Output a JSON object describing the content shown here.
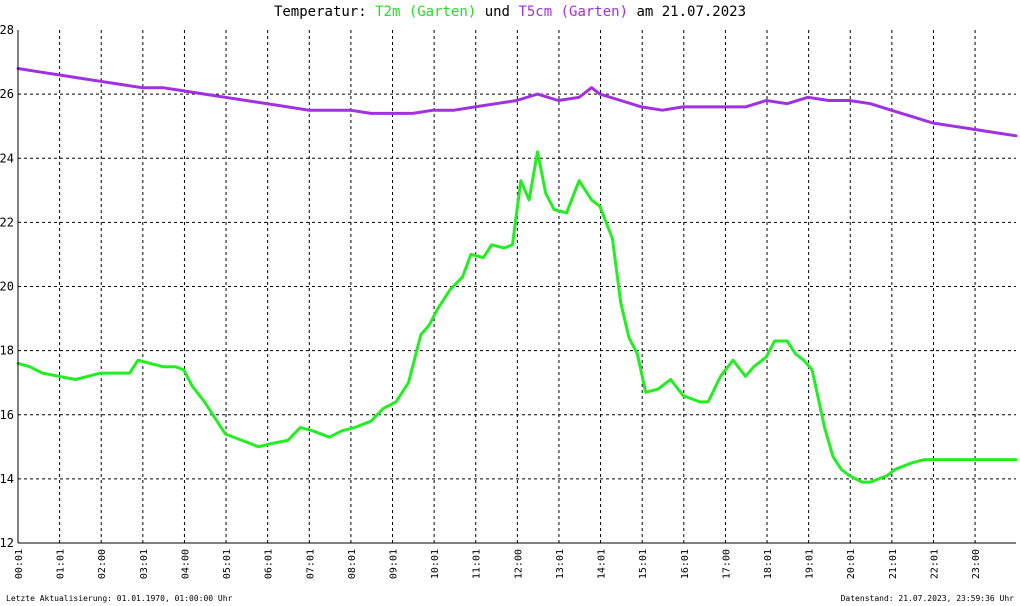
{
  "header": {
    "prefix": "Temperatur:",
    "series1": "T2m (Garten)",
    "mid": "und",
    "series2": "T5cm (Garten)",
    "suffix": "am 21.07.2023"
  },
  "footer": {
    "left": "Letzte Aktualisierung: 01.01.1970, 01:00:00 Uhr",
    "right": "Datenstand: 21.07.2023, 23:59:36 Uhr"
  },
  "colors": {
    "t2m": "#22ee22",
    "t5cm": "#a030e0",
    "grid": "#000000",
    "axis": "#000000"
  },
  "chart_data": {
    "type": "line",
    "title": "Temperatur: T2m (Garten) und T5cm (Garten) am 21.07.2023",
    "xlabel": "",
    "ylabel": "",
    "xlim": [
      0.0167,
      24
    ],
    "ylim": [
      12,
      28
    ],
    "grid": true,
    "x_ticks": [
      "00:01",
      "01:01",
      "02:00",
      "03:01",
      "04:00",
      "05:01",
      "06:01",
      "07:01",
      "08:01",
      "09:01",
      "10:01",
      "11:01",
      "12:00",
      "13:01",
      "14:01",
      "15:01",
      "16:01",
      "17:00",
      "18:01",
      "19:01",
      "20:01",
      "21:01",
      "22:01",
      "23:00"
    ],
    "y_ticks": [
      "12",
      "14",
      "16",
      "18",
      "20",
      "22",
      "24",
      "26",
      "28"
    ],
    "series": [
      {
        "name": "T2m (Garten)",
        "color": "#22ee22",
        "x": [
          0.0167,
          0.3,
          0.6,
          1.0,
          1.4,
          1.7,
          2.0,
          2.3,
          2.7,
          2.9,
          3.2,
          3.5,
          3.8,
          4.0,
          4.2,
          4.5,
          4.8,
          5.0,
          5.4,
          5.8,
          6.1,
          6.5,
          6.8,
          7.1,
          7.5,
          7.8,
          8.1,
          8.5,
          8.8,
          9.1,
          9.4,
          9.7,
          9.9,
          10.1,
          10.4,
          10.7,
          10.9,
          11.2,
          11.4,
          11.7,
          11.9,
          12.1,
          12.3,
          12.5,
          12.7,
          12.9,
          13.2,
          13.5,
          13.8,
          14.0,
          14.3,
          14.5,
          14.7,
          14.9,
          15.1,
          15.4,
          15.7,
          16.0,
          16.4,
          16.6,
          16.9,
          17.2,
          17.5,
          17.7,
          18.0,
          18.2,
          18.5,
          18.7,
          18.9,
          19.1,
          19.4,
          19.6,
          19.8,
          20.0,
          20.3,
          20.5,
          20.7,
          20.9,
          21.1,
          21.5,
          21.8,
          22.2,
          22.6,
          22.9,
          23.3,
          23.6,
          24.0
        ],
        "y": [
          17.6,
          17.5,
          17.3,
          17.2,
          17.1,
          17.2,
          17.3,
          17.3,
          17.3,
          17.7,
          17.6,
          17.5,
          17.5,
          17.4,
          16.9,
          16.4,
          15.8,
          15.4,
          15.2,
          15.0,
          15.1,
          15.2,
          15.6,
          15.5,
          15.3,
          15.5,
          15.6,
          15.8,
          16.2,
          16.4,
          17.0,
          18.5,
          18.8,
          19.3,
          19.9,
          20.3,
          21.0,
          20.9,
          21.3,
          21.2,
          21.3,
          23.3,
          22.7,
          24.2,
          22.9,
          22.4,
          22.3,
          23.3,
          22.7,
          22.5,
          21.5,
          19.5,
          18.4,
          17.9,
          16.7,
          16.8,
          17.1,
          16.6,
          16.4,
          16.4,
          17.2,
          17.7,
          17.2,
          17.5,
          17.8,
          18.3,
          18.3,
          17.9,
          17.7,
          17.4,
          15.6,
          14.7,
          14.3,
          14.1,
          13.9,
          13.9,
          14.0,
          14.1,
          14.3,
          14.5,
          14.6,
          14.6,
          14.6,
          14.6,
          14.6,
          14.6,
          14.6
        ]
      },
      {
        "name": "T5cm (Garten)",
        "color": "#a030e0",
        "x": [
          0.0167,
          0.5,
          1.0,
          1.5,
          2.0,
          2.5,
          3.0,
          3.5,
          4.0,
          4.5,
          5.0,
          5.5,
          6.0,
          6.5,
          7.0,
          7.5,
          8.0,
          8.5,
          9.0,
          9.5,
          10.0,
          10.5,
          11.0,
          11.5,
          12.0,
          12.5,
          13.0,
          13.5,
          13.8,
          14.0,
          14.5,
          15.0,
          15.5,
          16.0,
          16.5,
          17.0,
          17.5,
          18.0,
          18.5,
          19.0,
          19.5,
          20.0,
          20.5,
          21.0,
          21.5,
          22.0,
          22.5,
          23.0,
          23.5,
          24.0
        ],
        "y": [
          26.8,
          26.7,
          26.6,
          26.5,
          26.4,
          26.3,
          26.2,
          26.2,
          26.1,
          26.0,
          25.9,
          25.8,
          25.7,
          25.6,
          25.5,
          25.5,
          25.5,
          25.4,
          25.4,
          25.4,
          25.5,
          25.5,
          25.6,
          25.7,
          25.8,
          26.0,
          25.8,
          25.9,
          26.2,
          26.0,
          25.8,
          25.6,
          25.5,
          25.6,
          25.6,
          25.6,
          25.6,
          25.8,
          25.7,
          25.9,
          25.8,
          25.8,
          25.7,
          25.5,
          25.3,
          25.1,
          25.0,
          24.9,
          24.8,
          24.7
        ]
      }
    ]
  }
}
